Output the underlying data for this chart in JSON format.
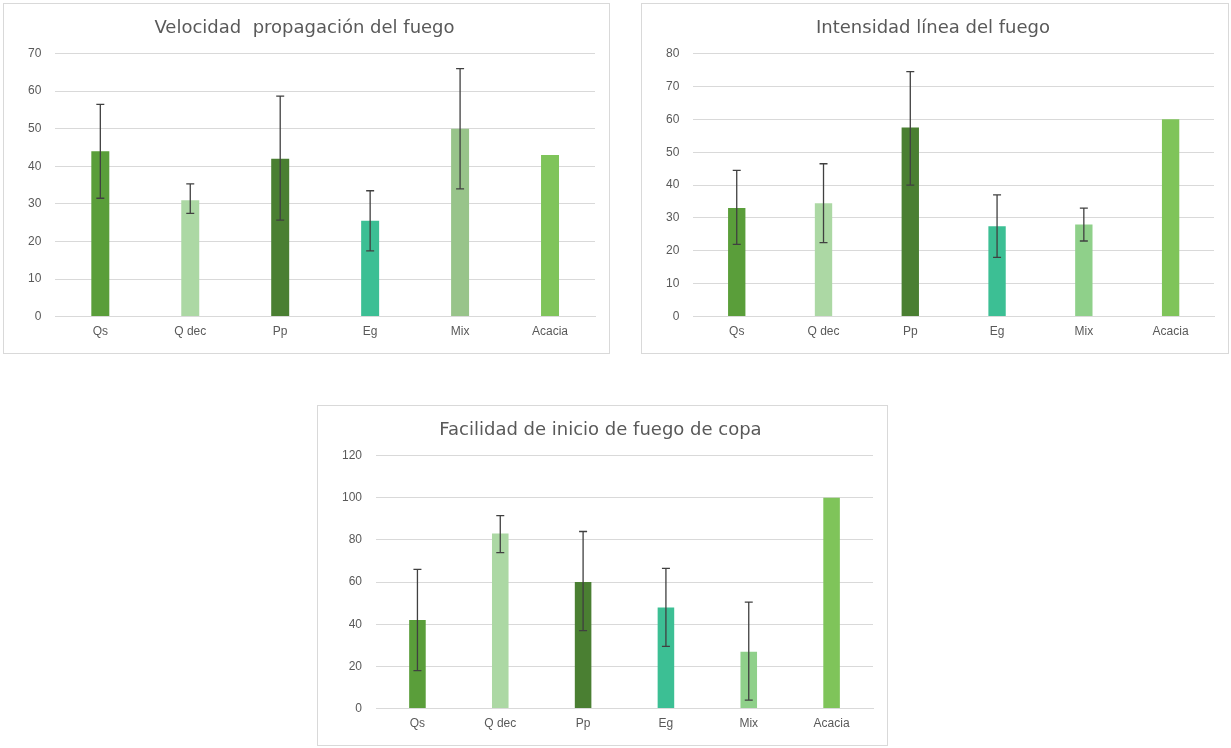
{
  "chart_data": [
    {
      "type": "bar",
      "title": "Velocidad  propagación del fuego",
      "categories": [
        "Qs",
        "Q dec",
        "Pp",
        "Eg",
        "Mix",
        "Acacia"
      ],
      "values": [
        44,
        31,
        42,
        25.5,
        50,
        43
      ],
      "colors": [
        "#5a9e3a",
        "#acd8a4",
        "#4a7f32",
        "#3cbf94",
        "#98c48a",
        "#7fc45a"
      ],
      "errors": [
        [
          31.5,
          56.5
        ],
        [
          27.5,
          35.3
        ],
        [
          25.7,
          58.7
        ],
        [
          17.5,
          33.5
        ],
        [
          34,
          66
        ],
        null
      ],
      "ylim": [
        0,
        70
      ],
      "yticks": [
        0,
        10,
        20,
        30,
        40,
        50,
        60,
        70
      ],
      "grid": "y",
      "legend": false
    },
    {
      "type": "bar",
      "title": "Intensidad línea del fuego",
      "categories": [
        "Qs",
        "Q dec",
        "Pp",
        "Eg",
        "Mix",
        "Acacia"
      ],
      "values": [
        33,
        34.5,
        57.5,
        27.5,
        28,
        60
      ],
      "colors": [
        "#5a9e3a",
        "#acd8a4",
        "#4a7f32",
        "#3cbf94",
        "#8fd08a",
        "#7fc45a"
      ],
      "errors": [
        [
          22,
          44.5
        ],
        [
          22.5,
          46.5
        ],
        [
          40,
          74.5
        ],
        [
          18,
          37
        ],
        [
          23,
          33
        ],
        null
      ],
      "ylim": [
        0,
        80
      ],
      "yticks": [
        0,
        10,
        20,
        30,
        40,
        50,
        60,
        70,
        80
      ],
      "grid": "y",
      "legend": false
    },
    {
      "type": "bar",
      "title": "Facilidad de inicio de fuego de copa",
      "categories": [
        "Qs",
        "Q dec",
        "Pp",
        "Eg",
        "Mix",
        "Acacia"
      ],
      "values": [
        42,
        83,
        60,
        48,
        27,
        100
      ],
      "colors": [
        "#5a9e3a",
        "#acd8a4",
        "#4a7f32",
        "#3cbf94",
        "#8fd08a",
        "#7fc45a"
      ],
      "errors": [
        [
          18,
          66
        ],
        [
          74,
          91.5
        ],
        [
          37,
          84
        ],
        [
          29.5,
          66.5
        ],
        [
          4,
          50.5
        ],
        null
      ],
      "ylim": [
        0,
        120
      ],
      "yticks": [
        0,
        20,
        40,
        60,
        80,
        100,
        120
      ],
      "grid": "y",
      "legend": false
    }
  ]
}
